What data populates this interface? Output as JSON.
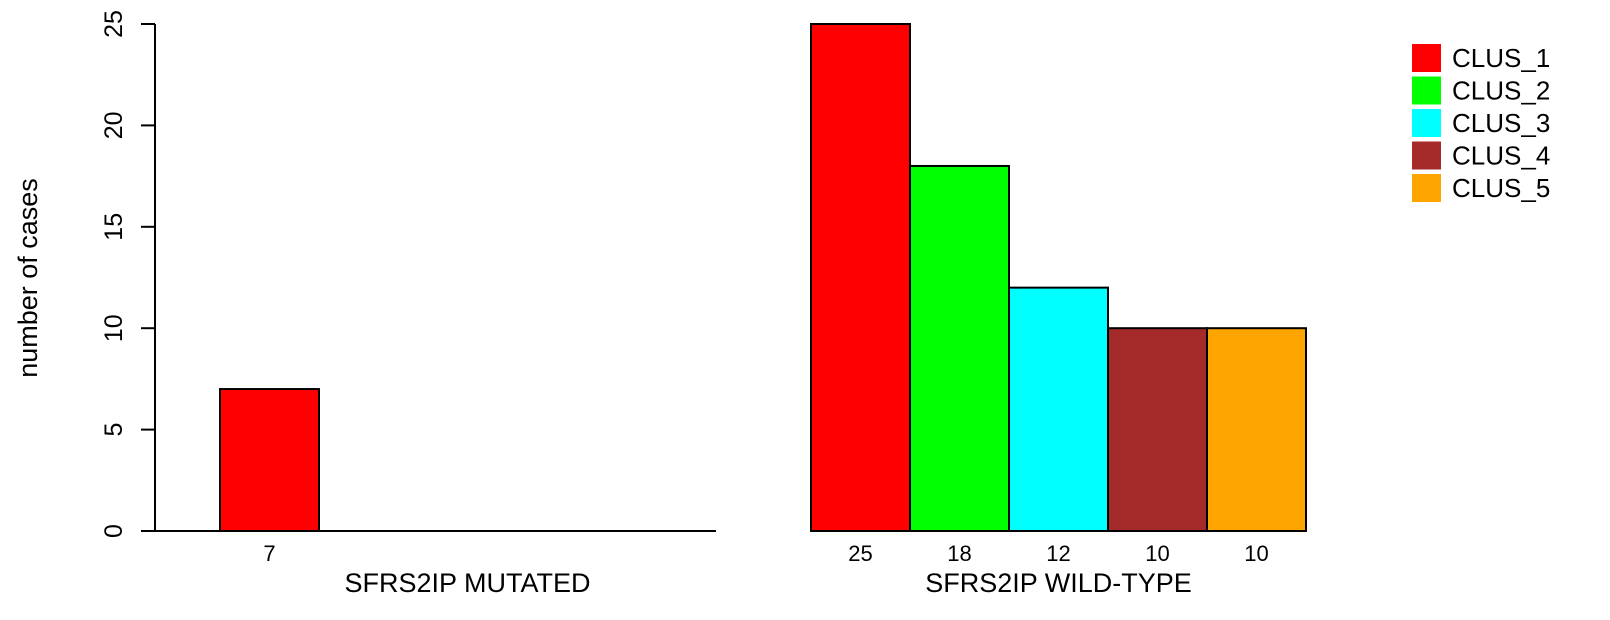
{
  "chart_data": {
    "type": "bar",
    "ylabel": "number of cases",
    "ylim": [
      0,
      25
    ],
    "yticks": [
      0,
      5,
      10,
      15,
      20,
      25
    ],
    "series": [
      {
        "name": "CLUS_1",
        "color": "#ff0000"
      },
      {
        "name": "CLUS_2",
        "color": "#00ff00"
      },
      {
        "name": "CLUS_3",
        "color": "#00ffff"
      },
      {
        "name": "CLUS_4",
        "color": "#a52a2a"
      },
      {
        "name": "CLUS_5",
        "color": "#ffa500"
      }
    ],
    "groups": [
      {
        "label": "SFRS2IP MUTATED",
        "values": [
          7,
          0,
          0,
          0,
          0
        ],
        "count_labels": [
          "7",
          "",
          "",
          "",
          ""
        ]
      },
      {
        "label": "SFRS2IP WILD-TYPE",
        "values": [
          25,
          18,
          12,
          10,
          10
        ],
        "count_labels": [
          "25",
          "18",
          "12",
          "10",
          "10"
        ]
      }
    ],
    "legend_position": "top-right"
  }
}
